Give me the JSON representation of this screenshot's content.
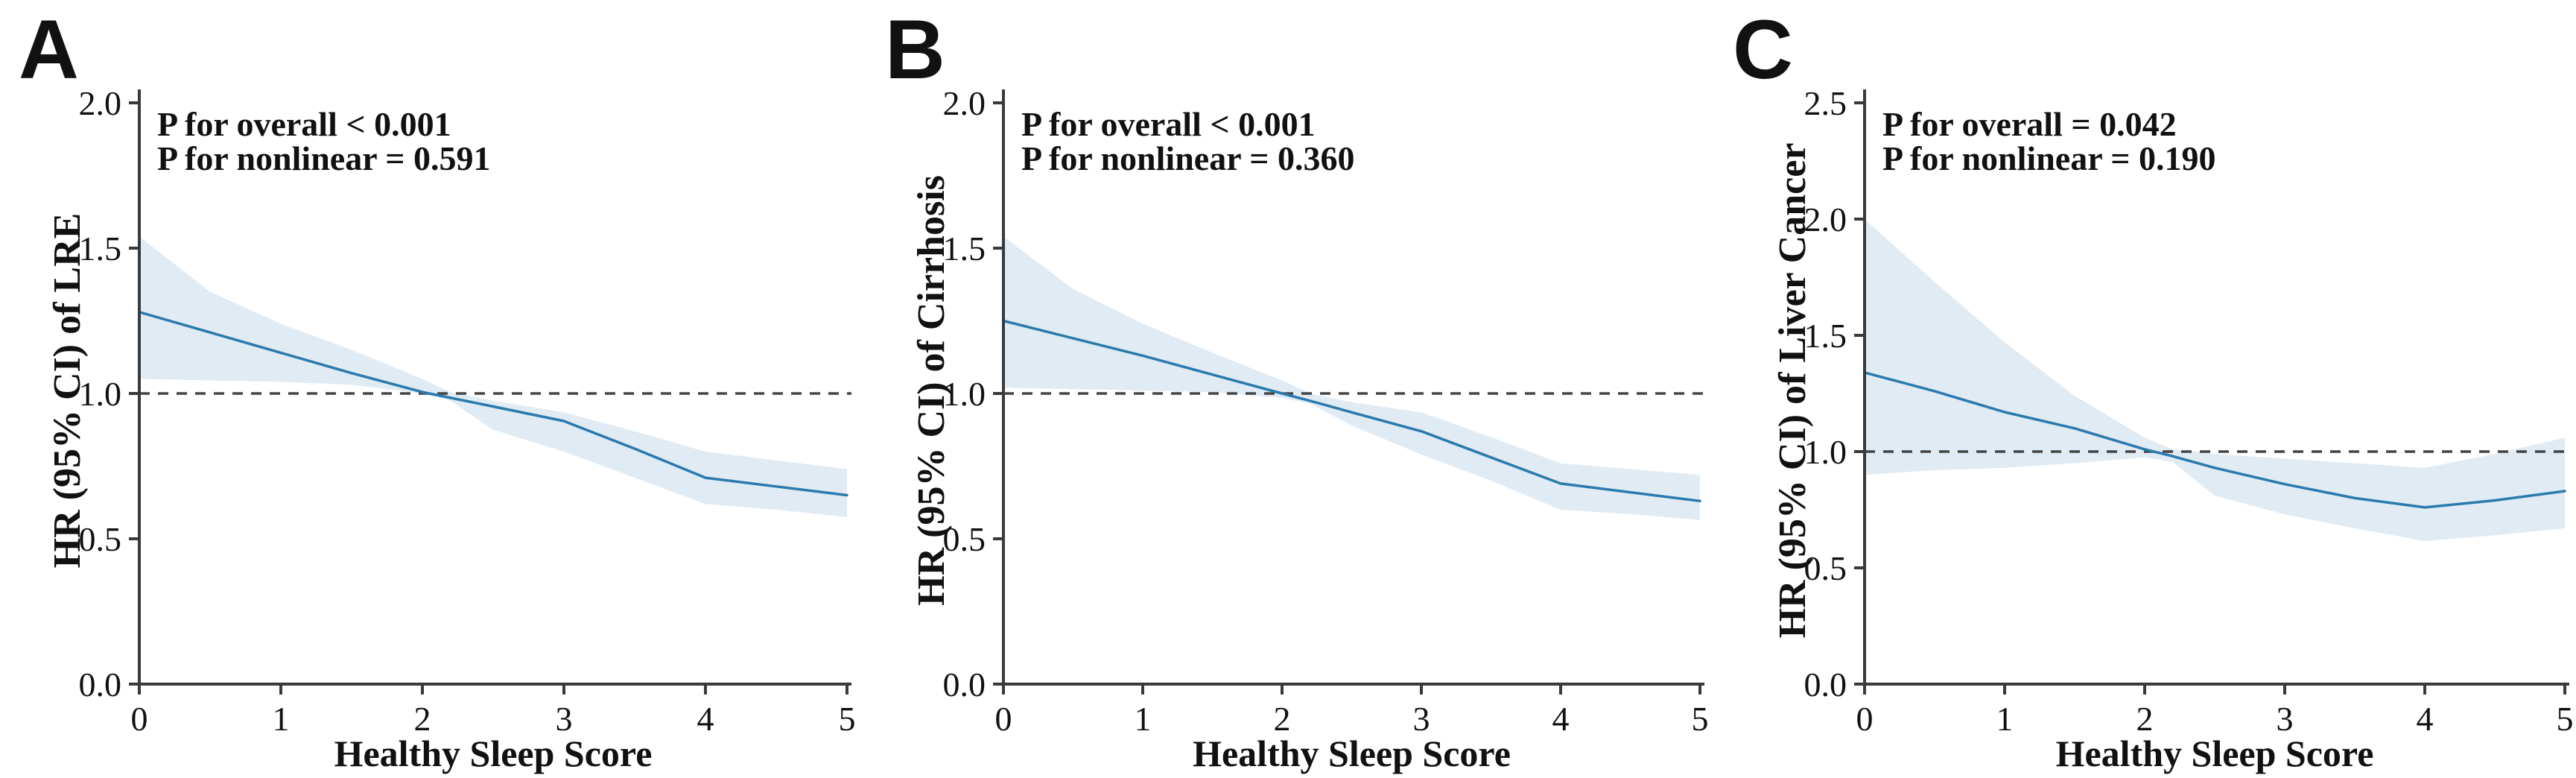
{
  "figure": {
    "description": "Restricted cubic spline hazard ratio curves for healthy sleep score and liver outcomes",
    "background": "#ffffff"
  },
  "style": {
    "line_color": "#2b7aae",
    "band_color": "#e1ebf4",
    "axis_color": "#3a3a3a",
    "dash_color": "#444444",
    "text_color": "#111111"
  },
  "chart_data": [
    {
      "type": "line",
      "panel_label": "A",
      "ylabel": "HR (95% CI) of LRE",
      "xlabel": "Healthy Sleep Score",
      "annotations": [
        "P for overall < 0.001",
        "P for nonlinear = 0.591"
      ],
      "x_ticks": [
        "0",
        "1",
        "2",
        "3",
        "4",
        "5"
      ],
      "y_ticks": [
        "0.0",
        "0.5",
        "1.0",
        "1.5",
        "2.0"
      ],
      "xlim": [
        0,
        5
      ],
      "ylim": [
        0,
        2.0
      ],
      "ref_line": 1.0,
      "grid": false,
      "legend": "none",
      "x": [
        0,
        0.5,
        1,
        1.5,
        2,
        2.2,
        2.5,
        3,
        3.5,
        4,
        4.5,
        5
      ],
      "hr": [
        1.28,
        1.21,
        1.14,
        1.07,
        1.005,
        0.985,
        0.955,
        0.905,
        0.81,
        0.71,
        0.68,
        0.65
      ],
      "ci_upper": [
        1.54,
        1.35,
        1.24,
        1.15,
        1.05,
        1.005,
        0.975,
        0.935,
        0.87,
        0.8,
        0.77,
        0.74
      ],
      "ci_lower": [
        1.05,
        1.045,
        1.04,
        1.03,
        1.0,
        0.975,
        0.875,
        0.8,
        0.71,
        0.62,
        0.6,
        0.575
      ]
    },
    {
      "type": "line",
      "panel_label": "B",
      "ylabel": "HR (95% CI) of Cirrhosis",
      "xlabel": "Healthy Sleep Score",
      "annotations": [
        "P for overall < 0.001",
        "P for nonlinear = 0.360"
      ],
      "x_ticks": [
        "0",
        "1",
        "2",
        "3",
        "4",
        "5"
      ],
      "y_ticks": [
        "0.0",
        "0.5",
        "1.0",
        "1.5",
        "2.0"
      ],
      "xlim": [
        0,
        5
      ],
      "ylim": [
        0,
        2.0
      ],
      "ref_line": 1.0,
      "grid": false,
      "legend": "none",
      "x": [
        0,
        0.5,
        1,
        1.5,
        2,
        2.2,
        2.5,
        3,
        3.5,
        4,
        4.5,
        5
      ],
      "hr": [
        1.25,
        1.19,
        1.13,
        1.065,
        1.0,
        0.975,
        0.935,
        0.87,
        0.78,
        0.69,
        0.66,
        0.63
      ],
      "ci_upper": [
        1.54,
        1.36,
        1.24,
        1.14,
        1.045,
        1.0,
        0.97,
        0.935,
        0.85,
        0.76,
        0.74,
        0.72
      ],
      "ci_lower": [
        1.02,
        1.015,
        1.01,
        1.005,
        0.985,
        0.965,
        0.89,
        0.79,
        0.7,
        0.6,
        0.585,
        0.565
      ]
    },
    {
      "type": "line",
      "panel_label": "C",
      "ylabel": "HR (95% CI) of Liver Cancer",
      "xlabel": "Healthy Sleep Score",
      "annotations": [
        "P for overall = 0.042",
        "P for nonlinear = 0.190"
      ],
      "x_ticks": [
        "0",
        "1",
        "2",
        "3",
        "4",
        "5"
      ],
      "y_ticks": [
        "0.0",
        "0.5",
        "1.0",
        "1.5",
        "2.0",
        "2.5"
      ],
      "xlim": [
        0,
        5
      ],
      "ylim": [
        0,
        2.5
      ],
      "ref_line": 1.0,
      "grid": false,
      "legend": "none",
      "x": [
        0,
        0.5,
        1,
        1.5,
        2,
        2.2,
        2.5,
        3,
        3.5,
        4,
        4.5,
        5
      ],
      "hr": [
        1.34,
        1.26,
        1.17,
        1.1,
        1.01,
        0.98,
        0.93,
        0.86,
        0.8,
        0.76,
        0.79,
        0.83
      ],
      "ci_upper": [
        2.0,
        1.73,
        1.47,
        1.24,
        1.06,
        1.01,
        0.99,
        0.97,
        0.95,
        0.93,
        0.99,
        1.06
      ],
      "ci_lower": [
        0.9,
        0.92,
        0.93,
        0.95,
        0.975,
        0.955,
        0.81,
        0.73,
        0.67,
        0.615,
        0.64,
        0.67
      ]
    }
  ]
}
